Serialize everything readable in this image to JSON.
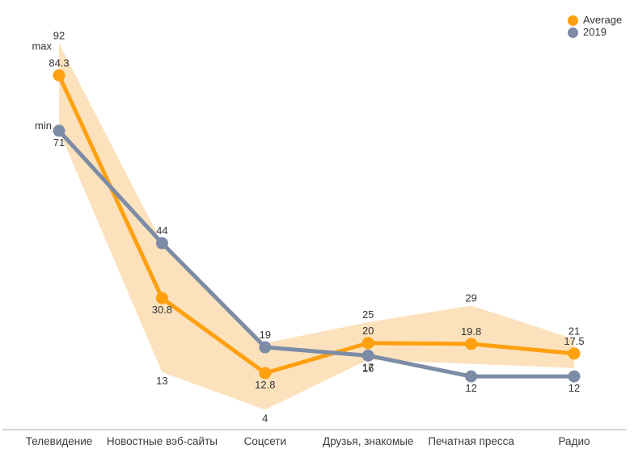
{
  "chart_data": {
    "type": "line",
    "title": "",
    "categories": [
      "Телевидение",
      "Новостные вэб-сайты",
      "Соцсети",
      "Друзья, знакомые",
      "Печатная пресса",
      "Радио"
    ],
    "series": [
      {
        "name": "Average",
        "color": "#FFA011",
        "values": [
          84.3,
          30.8,
          12.8,
          20,
          19.8,
          17.5
        ]
      },
      {
        "name": "2019",
        "color": "#7D8CA6",
        "values": [
          71,
          44,
          19,
          17,
          12,
          12
        ]
      }
    ],
    "band": {
      "name": "min-max-range",
      "fill": "#FBE2BD",
      "max": [
        92,
        44,
        20,
        25,
        29,
        21
      ],
      "min": [
        71,
        13,
        4,
        16,
        15,
        14
      ]
    },
    "point_labels": [
      {
        "text": "92",
        "cat": 0,
        "value": 92,
        "place": "above-band"
      },
      {
        "text": "84.3",
        "cat": 0,
        "value": 84.3,
        "place": "above-dot"
      },
      {
        "text": "71",
        "cat": 0,
        "value": 71,
        "place": "below-dot"
      },
      {
        "text": "44",
        "cat": 1,
        "value": 44,
        "place": "above-dot"
      },
      {
        "text": "30.8",
        "cat": 1,
        "value": 30.8,
        "place": "below-dot"
      },
      {
        "text": "13",
        "cat": 1,
        "value": 13,
        "place": "below-band"
      },
      {
        "text": "19",
        "cat": 2,
        "value": 19,
        "place": "above-dot"
      },
      {
        "text": "12.8",
        "cat": 2,
        "value": 12.8,
        "place": "below-dot"
      },
      {
        "text": "4",
        "cat": 2,
        "value": 4,
        "place": "below-band"
      },
      {
        "text": "25",
        "cat": 3,
        "value": 25,
        "place": "above-band"
      },
      {
        "text": "20",
        "cat": 3,
        "value": 20,
        "place": "above-dot"
      },
      {
        "text": "17",
        "cat": 3,
        "value": 17,
        "place": "below-dot"
      },
      {
        "text": "16",
        "cat": 3,
        "value": 16,
        "place": "below-band"
      },
      {
        "text": "29",
        "cat": 4,
        "value": 29,
        "place": "above-band"
      },
      {
        "text": "19.8",
        "cat": 4,
        "value": 19.8,
        "place": "above-dot"
      },
      {
        "text": "12",
        "cat": 4,
        "value": 12,
        "place": "below-dot"
      },
      {
        "text": "21",
        "cat": 5,
        "value": 21,
        "place": "above-band"
      },
      {
        "text": "17.5",
        "cat": 5,
        "value": 17.5,
        "place": "above-dot"
      },
      {
        "text": "12",
        "cat": 5,
        "value": 12,
        "place": "below-dot"
      }
    ],
    "range_annotations": [
      {
        "text": "max",
        "cat": 0,
        "value": 92,
        "place": "left-of-band"
      },
      {
        "text": "min",
        "cat": 0,
        "value": 71,
        "place": "left-of-dot"
      }
    ],
    "legend": {
      "position": "top-right",
      "items": [
        {
          "label": "Average",
          "color": "#FFA011"
        },
        {
          "label": "2019",
          "color": "#7D8CA6"
        }
      ]
    },
    "axis": {
      "ylim": [
        0,
        102
      ],
      "grid": false,
      "y_axis_visible": false,
      "x_axis_line_color": "#ADADAD",
      "x_label_color": "#3C3C3C",
      "annotation_color": "#333333"
    }
  }
}
